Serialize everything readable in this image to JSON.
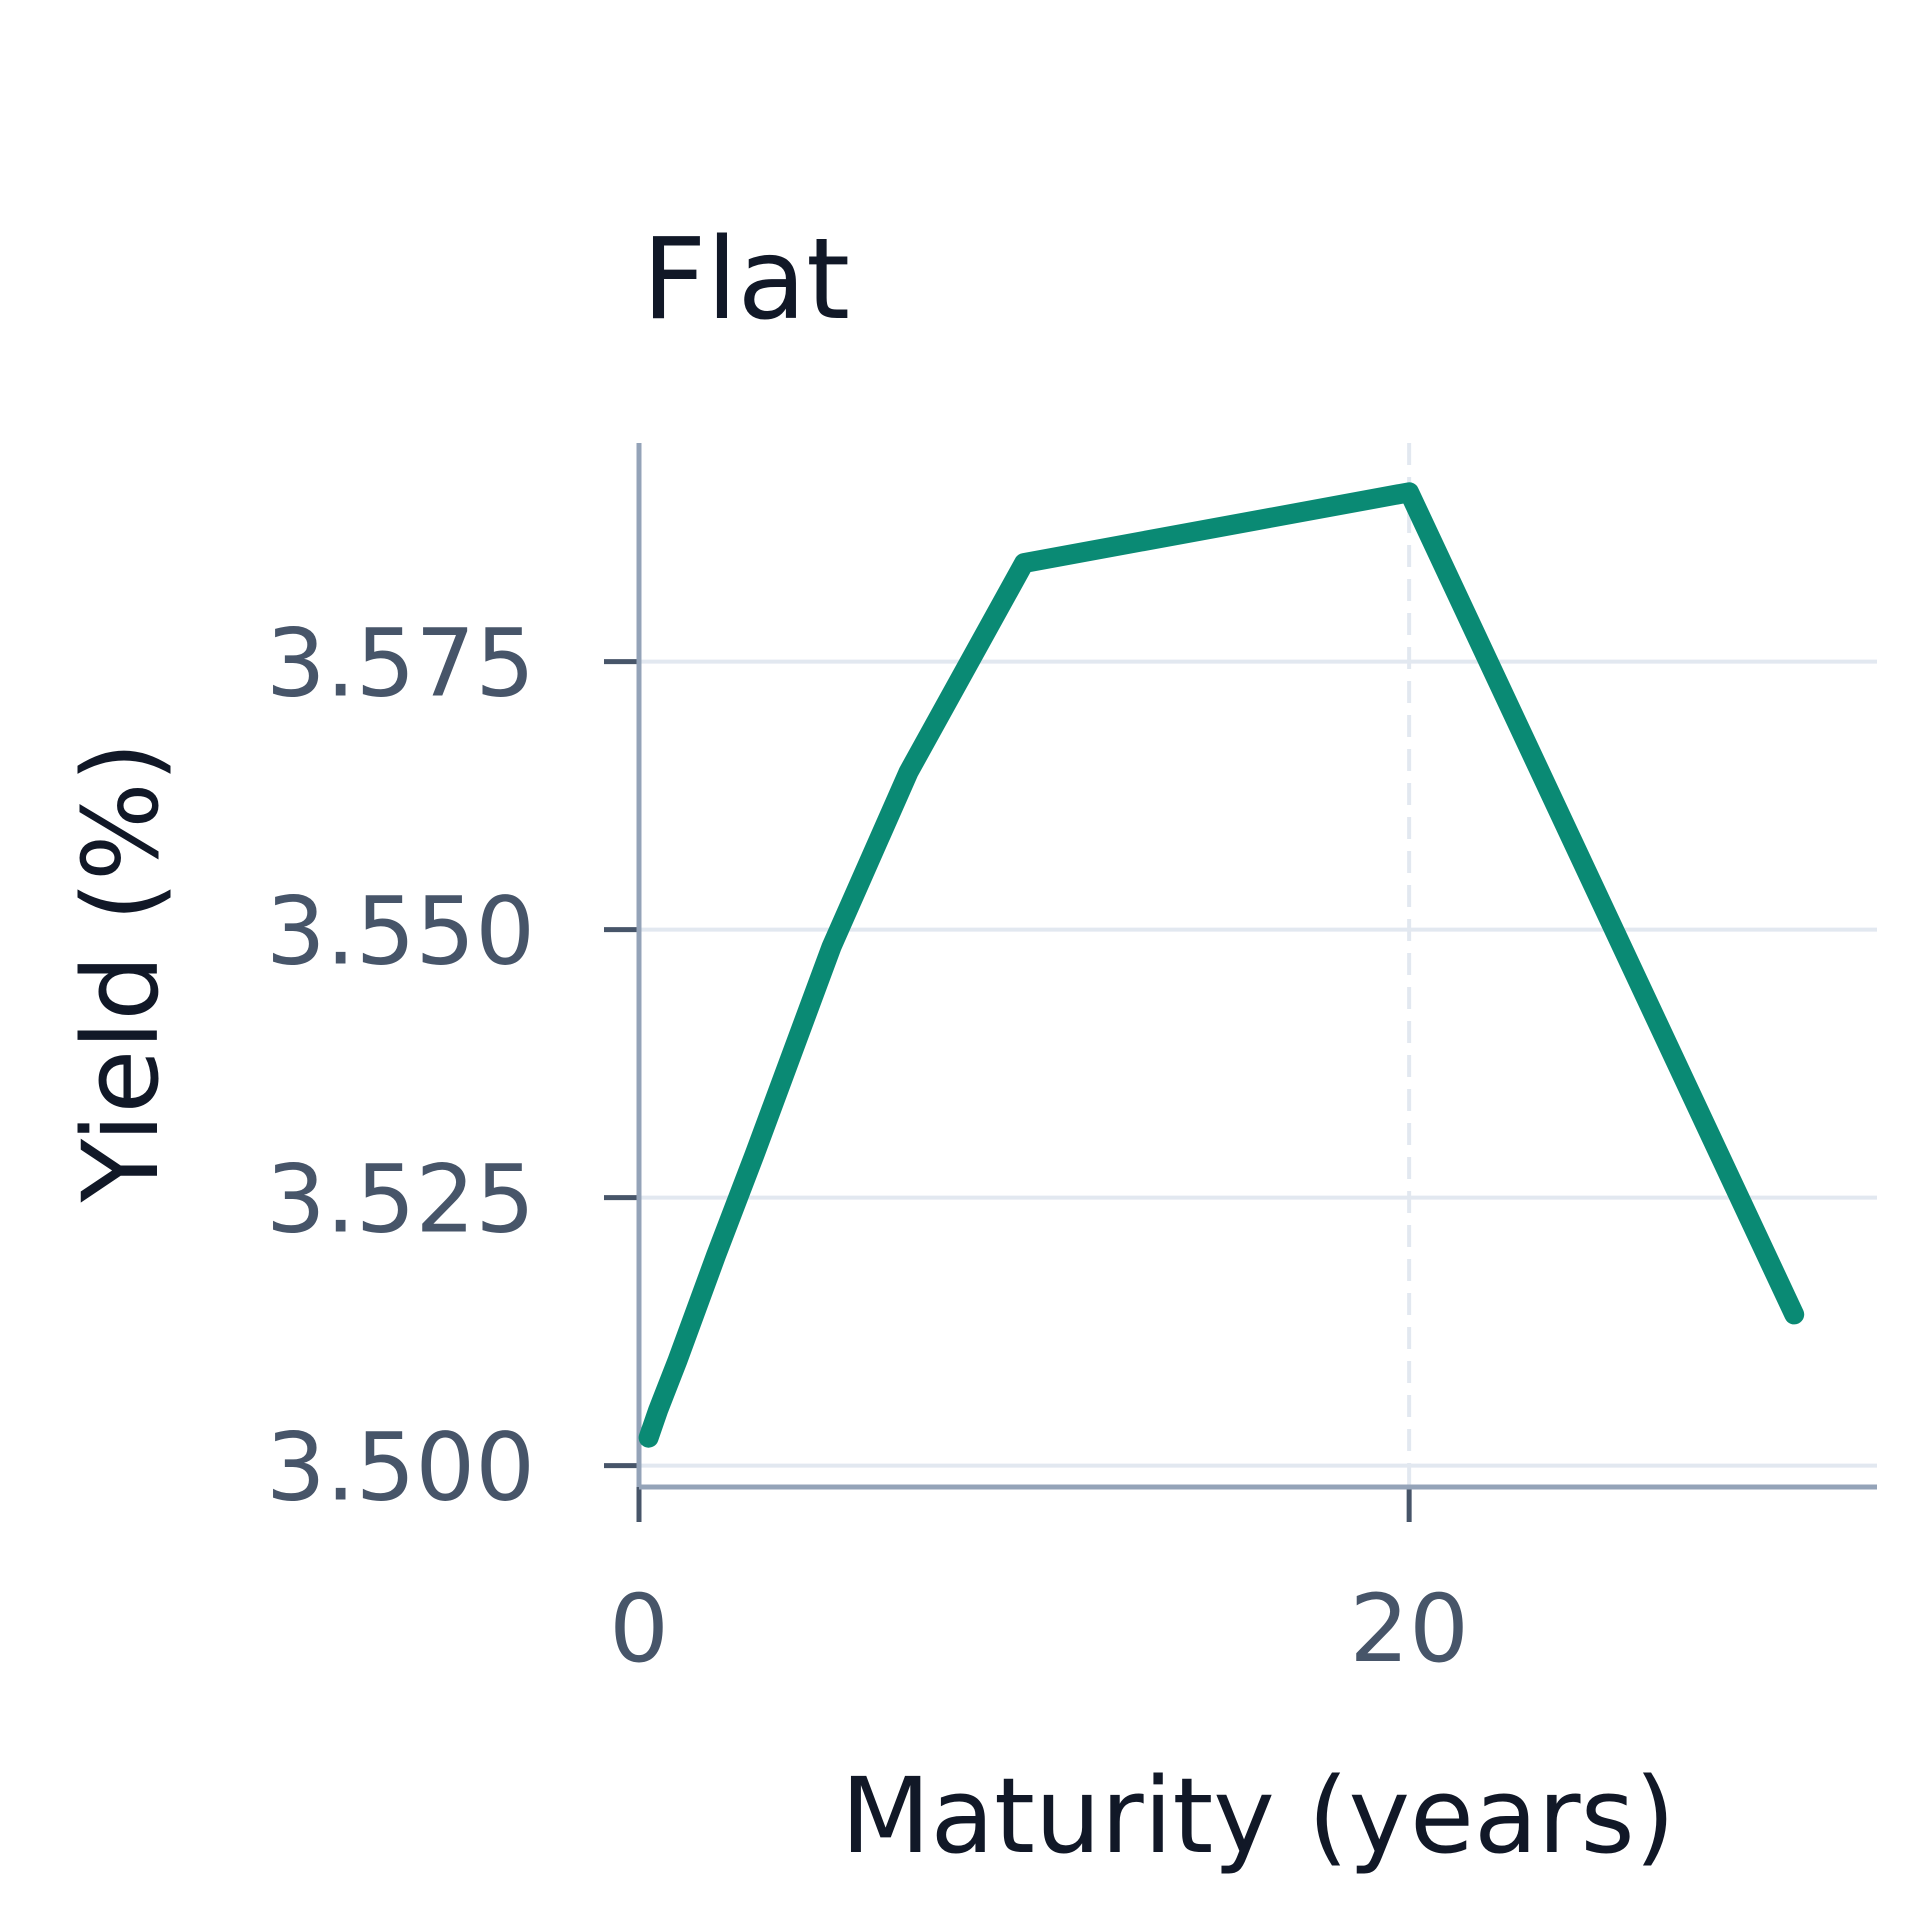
{
  "chart_data": {
    "type": "line",
    "title": "Flat",
    "x_label": "Maturity (years)",
    "y_label": "Yield (%)",
    "x": [
      0.25,
      0.5,
      1,
      2,
      3,
      5,
      7,
      10,
      20,
      30
    ],
    "series": [
      {
        "name": "Flat",
        "color": "#0a8a74",
        "values": [
          3.5026,
          3.5052,
          3.5098,
          3.5196,
          3.529,
          3.5484,
          3.5647,
          3.5842,
          3.5908,
          3.5141
        ]
      }
    ],
    "xlim": [
      0,
      32.15
    ],
    "xticks": [
      0,
      20
    ],
    "ylim": [
      3.498,
      3.5954
    ],
    "yticks": [
      {
        "value": 3.5,
        "label": "3.500"
      },
      {
        "value": 3.525,
        "label": "3.525"
      },
      {
        "value": 3.55,
        "label": "3.550"
      },
      {
        "value": 3.575,
        "label": "3.575"
      }
    ],
    "grid": true
  }
}
